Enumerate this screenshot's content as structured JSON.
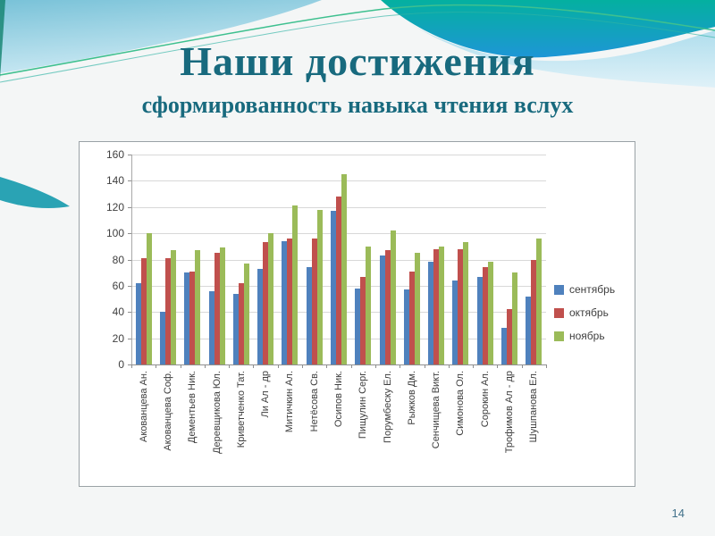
{
  "slide": {
    "title": "Наши достижения",
    "subtitle": "сформированность навыка чтения вслух",
    "page_number": "14"
  },
  "colors": {
    "title_text": "#186a7e",
    "header_teal_green": "#04b0a0",
    "header_blue": "#1e96d6",
    "header_light_blue": "#79c2d8",
    "accent_line_green": "#3ec08f",
    "series_september": "#4F81BD",
    "series_october": "#C0504D",
    "series_november": "#9BBB59"
  },
  "chart_data": {
    "type": "bar",
    "title": "",
    "xlabel": "",
    "ylabel": "",
    "ylim": [
      0,
      160
    ],
    "ytick_step": 20,
    "grid": true,
    "legend_position": "right",
    "categories": [
      "Акованцева Ан.",
      "Акованцева Соф.",
      "Дементьев Ник.",
      "Деревщикова Юл.",
      "Криветченко Тат.",
      "Ли Ал - др",
      "Митичкин Ал.",
      "Нетёсова Св.",
      "Осипов Ник.",
      "Пищулин Серг.",
      "Порумбеску Ел.",
      "Рыжков Дм.",
      "Сенчищева Викт.",
      "Симонова Ол.",
      "Сорокин Ал.",
      "Трофимов Ал - др",
      "Шушпанова Ел."
    ],
    "series": [
      {
        "name": "сентябрь",
        "color": "#4F81BD",
        "values": [
          62,
          40,
          70,
          56,
          54,
          73,
          94,
          74,
          117,
          58,
          83,
          57,
          78,
          64,
          67,
          28,
          52
        ]
      },
      {
        "name": "октябрь",
        "color": "#C0504D",
        "values": [
          81,
          81,
          71,
          85,
          62,
          93,
          96,
          96,
          128,
          67,
          87,
          71,
          88,
          88,
          74,
          42,
          80
        ]
      },
      {
        "name": "ноябрь",
        "color": "#9BBB59",
        "values": [
          100,
          87,
          87,
          89,
          77,
          100,
          121,
          118,
          145,
          90,
          102,
          85,
          90,
          93,
          78,
          70,
          96
        ]
      }
    ]
  }
}
